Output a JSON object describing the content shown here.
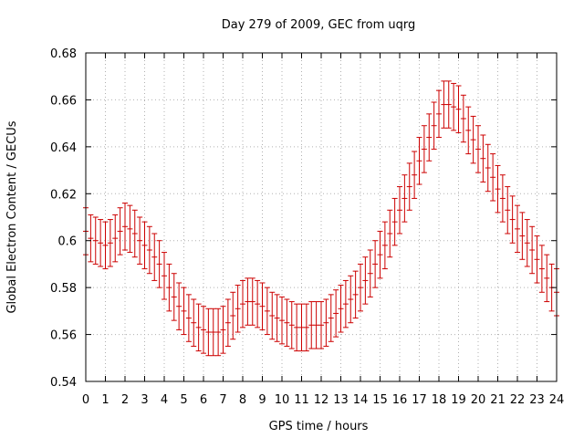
{
  "chart_data": {
    "type": "scatter",
    "title": "Day 279 of 2009, GEC from uqrg",
    "xlabel": "GPS time / hours",
    "ylabel": "Global Electron Content / GECUs",
    "xlim": [
      0,
      24
    ],
    "ylim": [
      0.54,
      0.68
    ],
    "x_ticks": [
      "0",
      "1",
      "2",
      "3",
      "4",
      "5",
      "6",
      "7",
      "8",
      "9",
      "10",
      "11",
      "12",
      "13",
      "14",
      "15",
      "16",
      "17",
      "18",
      "19",
      "20",
      "21",
      "22",
      "23",
      "24"
    ],
    "y_ticks": [
      "0.54",
      "0.56",
      "0.58",
      "0.6",
      "0.62",
      "0.64",
      "0.66",
      "0.68"
    ],
    "grid": true,
    "error": 0.01,
    "series": [
      {
        "color": "#cc0000",
        "points": [
          [
            0.0,
            0.604
          ],
          [
            0.25,
            0.601
          ],
          [
            0.5,
            0.6
          ],
          [
            0.75,
            0.599
          ],
          [
            1.0,
            0.598
          ],
          [
            1.25,
            0.599
          ],
          [
            1.5,
            0.601
          ],
          [
            1.75,
            0.604
          ],
          [
            2.0,
            0.606
          ],
          [
            2.25,
            0.605
          ],
          [
            2.5,
            0.603
          ],
          [
            2.75,
            0.6
          ],
          [
            3.0,
            0.598
          ],
          [
            3.25,
            0.596
          ],
          [
            3.5,
            0.593
          ],
          [
            3.75,
            0.59
          ],
          [
            4.0,
            0.585
          ],
          [
            4.25,
            0.58
          ],
          [
            4.5,
            0.576
          ],
          [
            4.75,
            0.572
          ],
          [
            5.0,
            0.57
          ],
          [
            5.25,
            0.567
          ],
          [
            5.5,
            0.565
          ],
          [
            5.75,
            0.563
          ],
          [
            6.0,
            0.562
          ],
          [
            6.25,
            0.561
          ],
          [
            6.5,
            0.561
          ],
          [
            6.75,
            0.561
          ],
          [
            7.0,
            0.562
          ],
          [
            7.25,
            0.565
          ],
          [
            7.5,
            0.568
          ],
          [
            7.75,
            0.571
          ],
          [
            8.0,
            0.573
          ],
          [
            8.25,
            0.574
          ],
          [
            8.5,
            0.574
          ],
          [
            8.75,
            0.573
          ],
          [
            9.0,
            0.572
          ],
          [
            9.25,
            0.57
          ],
          [
            9.5,
            0.568
          ],
          [
            9.75,
            0.567
          ],
          [
            10.0,
            0.566
          ],
          [
            10.25,
            0.565
          ],
          [
            10.5,
            0.564
          ],
          [
            10.75,
            0.563
          ],
          [
            11.0,
            0.563
          ],
          [
            11.25,
            0.563
          ],
          [
            11.5,
            0.564
          ],
          [
            11.75,
            0.564
          ],
          [
            12.0,
            0.564
          ],
          [
            12.25,
            0.565
          ],
          [
            12.5,
            0.567
          ],
          [
            12.75,
            0.569
          ],
          [
            13.0,
            0.571
          ],
          [
            13.25,
            0.573
          ],
          [
            13.5,
            0.575
          ],
          [
            13.75,
            0.577
          ],
          [
            14.0,
            0.58
          ],
          [
            14.25,
            0.583
          ],
          [
            14.5,
            0.586
          ],
          [
            14.75,
            0.59
          ],
          [
            15.0,
            0.594
          ],
          [
            15.25,
            0.598
          ],
          [
            15.5,
            0.603
          ],
          [
            15.75,
            0.608
          ],
          [
            16.0,
            0.613
          ],
          [
            16.25,
            0.618
          ],
          [
            16.5,
            0.623
          ],
          [
            16.75,
            0.628
          ],
          [
            17.0,
            0.634
          ],
          [
            17.25,
            0.639
          ],
          [
            17.5,
            0.644
          ],
          [
            17.75,
            0.649
          ],
          [
            18.0,
            0.654
          ],
          [
            18.25,
            0.658
          ],
          [
            18.5,
            0.658
          ],
          [
            18.75,
            0.657
          ],
          [
            19.0,
            0.656
          ],
          [
            19.25,
            0.652
          ],
          [
            19.5,
            0.647
          ],
          [
            19.75,
            0.643
          ],
          [
            20.0,
            0.639
          ],
          [
            20.25,
            0.635
          ],
          [
            20.5,
            0.631
          ],
          [
            20.75,
            0.627
          ],
          [
            21.0,
            0.622
          ],
          [
            21.25,
            0.618
          ],
          [
            21.5,
            0.613
          ],
          [
            21.75,
            0.609
          ],
          [
            22.0,
            0.605
          ],
          [
            22.25,
            0.602
          ],
          [
            22.5,
            0.599
          ],
          [
            22.75,
            0.596
          ],
          [
            23.0,
            0.592
          ],
          [
            23.25,
            0.588
          ],
          [
            23.5,
            0.584
          ],
          [
            23.75,
            0.58
          ],
          [
            24.0,
            0.578
          ]
        ]
      }
    ]
  }
}
